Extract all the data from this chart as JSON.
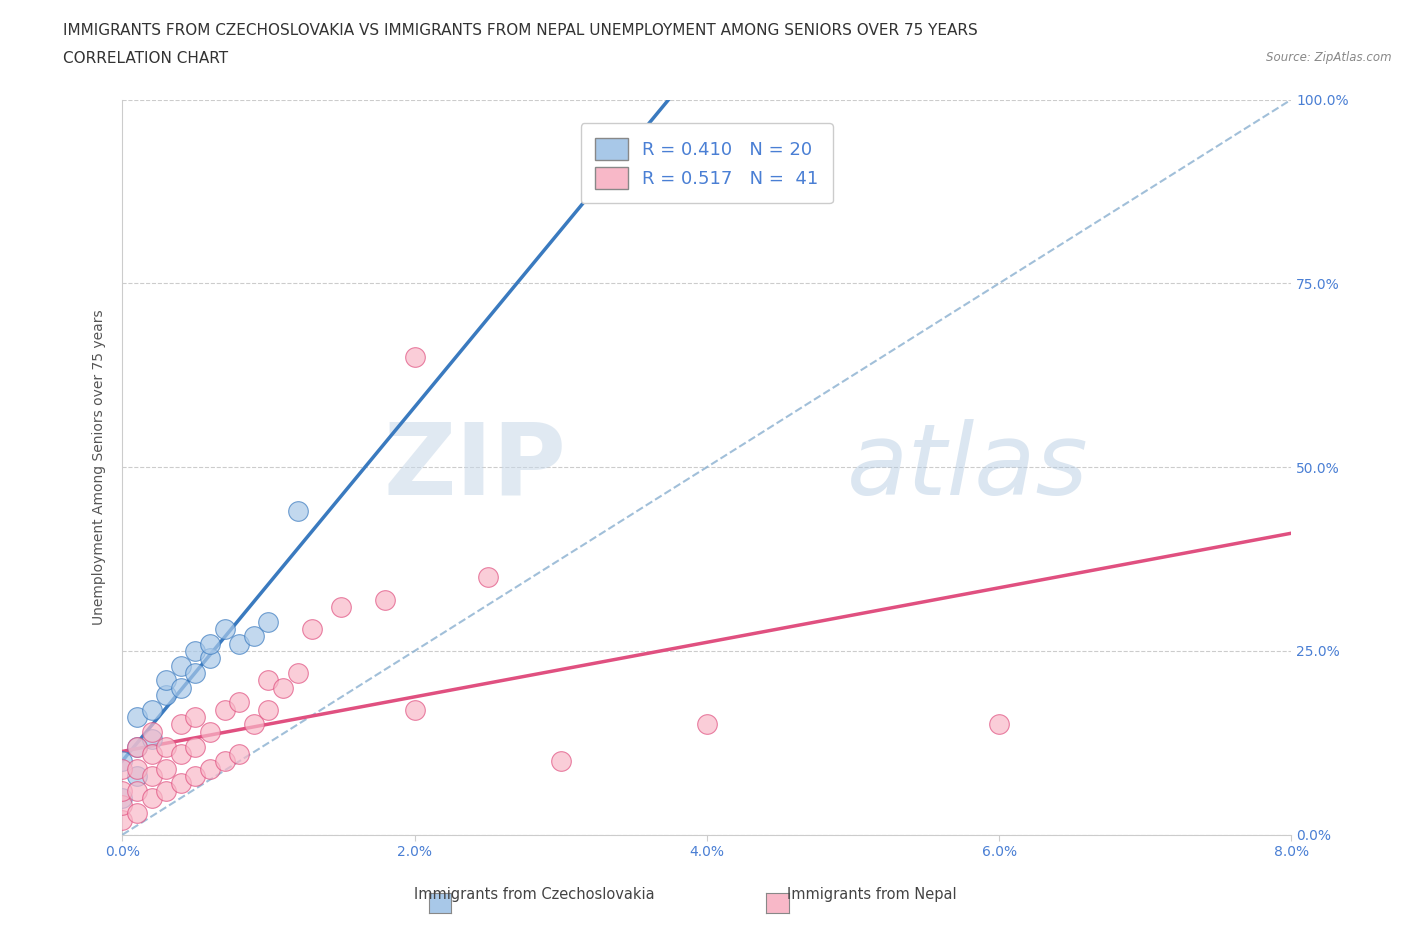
{
  "title_line1": "IMMIGRANTS FROM CZECHOSLOVAKIA VS IMMIGRANTS FROM NEPAL UNEMPLOYMENT AMONG SENIORS OVER 75 YEARS",
  "title_line2": "CORRELATION CHART",
  "source": "Source: ZipAtlas.com",
  "ylabel": "Unemployment Among Seniors over 75 years",
  "xmin": 0.0,
  "xmax": 0.08,
  "ymin": 0.0,
  "ymax": 1.0,
  "grid_color": "#cccccc",
  "background_color": "#ffffff",
  "czech_color": "#a8c8e8",
  "nepal_color": "#f8b8c8",
  "czech_line_color": "#3a7abf",
  "nepal_line_color": "#e05080",
  "diag_line_color": "#8ab0d0",
  "legend_R_czech": "0.410",
  "legend_N_czech": "20",
  "legend_R_nepal": "0.517",
  "legend_N_nepal": "41",
  "title_fontsize": 11,
  "subtitle_fontsize": 11,
  "axis_label_fontsize": 10,
  "tick_fontsize": 10,
  "legend_fontsize": 13,
  "czech_x": [
    0.0,
    0.0,
    0.001,
    0.001,
    0.001,
    0.002,
    0.002,
    0.003,
    0.003,
    0.004,
    0.004,
    0.005,
    0.005,
    0.006,
    0.006,
    0.007,
    0.008,
    0.009,
    0.01,
    0.012
  ],
  "czech_y": [
    0.05,
    0.1,
    0.08,
    0.12,
    0.16,
    0.13,
    0.17,
    0.19,
    0.21,
    0.2,
    0.23,
    0.22,
    0.25,
    0.24,
    0.26,
    0.28,
    0.26,
    0.27,
    0.29,
    0.44
  ],
  "nepal_x": [
    0.0,
    0.0,
    0.0,
    0.0,
    0.001,
    0.001,
    0.001,
    0.001,
    0.002,
    0.002,
    0.002,
    0.002,
    0.003,
    0.003,
    0.003,
    0.004,
    0.004,
    0.004,
    0.005,
    0.005,
    0.005,
    0.006,
    0.006,
    0.007,
    0.007,
    0.008,
    0.008,
    0.009,
    0.01,
    0.01,
    0.011,
    0.012,
    0.013,
    0.015,
    0.018,
    0.02,
    0.02,
    0.025,
    0.03,
    0.04,
    0.06
  ],
  "nepal_y": [
    0.02,
    0.04,
    0.06,
    0.09,
    0.03,
    0.06,
    0.09,
    0.12,
    0.05,
    0.08,
    0.11,
    0.14,
    0.06,
    0.09,
    0.12,
    0.07,
    0.11,
    0.15,
    0.08,
    0.12,
    0.16,
    0.09,
    0.14,
    0.1,
    0.17,
    0.11,
    0.18,
    0.15,
    0.17,
    0.21,
    0.2,
    0.22,
    0.28,
    0.31,
    0.32,
    0.17,
    0.65,
    0.35,
    0.1,
    0.15,
    0.15
  ]
}
